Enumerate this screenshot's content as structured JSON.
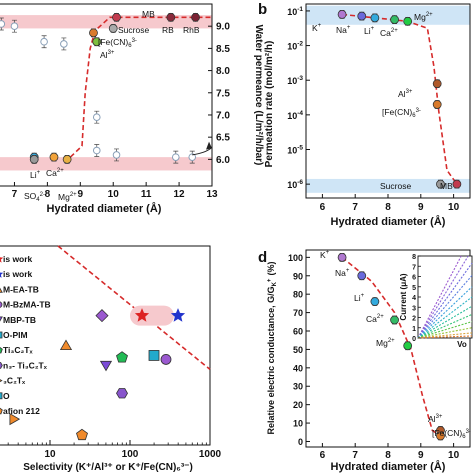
{
  "chart_data": [
    {
      "panel": "",
      "type": "scatter",
      "xlabel": "Hydrated diameter (Å)",
      "y2label": "Water permeance (L/m²/h/bar)",
      "xlim": [
        6.5,
        13
      ],
      "y2lim": [
        5.4,
        9.5
      ],
      "x_ticks": [
        "7",
        "8",
        "9",
        "10",
        "11",
        "12",
        "13"
      ],
      "y2_ticks": [
        "6.0",
        "6.5",
        "7.0",
        "7.5",
        "8.0",
        "8.5",
        "9.0"
      ],
      "bands": [
        {
          "y_from": 8.95,
          "y_to": 9.25,
          "color": "#f6c9cd"
        },
        {
          "y_from": 5.75,
          "y_to": 6.05,
          "color": "#f6c9cd"
        }
      ],
      "points": [
        {
          "label": "MB",
          "x": 10.1,
          "y": 9.2,
          "color": "#c23b4e"
        },
        {
          "label": "RB",
          "x": 11.75,
          "y": 9.2,
          "color": "#8a2a3c"
        },
        {
          "label": "RhB",
          "x": 12.5,
          "y": 9.2,
          "color": "#7b2233"
        },
        {
          "label": "Sucrose",
          "x": 10.0,
          "y": 8.95,
          "color": "#aaaaaa"
        },
        {
          "label": "[Fe(CN)6]3-",
          "x": 9.4,
          "y": 8.85,
          "color": "#d97a2b"
        },
        {
          "label": "Al3+",
          "x": 9.5,
          "y": 8.65,
          "color": "#7fbf3f"
        },
        {
          "label": "Li+",
          "x": 7.6,
          "y": 6.05,
          "color": "#33aadd"
        },
        {
          "label": "SO42-",
          "x": 7.6,
          "y": 6.0,
          "color": "#999999"
        },
        {
          "label": "Ca2+",
          "x": 8.2,
          "y": 6.05,
          "color": "#f2a33a"
        },
        {
          "label": "Mg2+",
          "x": 8.6,
          "y": 6.0,
          "color": "#e7b043"
        }
      ],
      "open_points": [
        {
          "x": 6.6,
          "y": 9.05
        },
        {
          "x": 7.0,
          "y": 9.0
        },
        {
          "x": 7.9,
          "y": 8.65
        },
        {
          "x": 8.5,
          "y": 8.6
        },
        {
          "x": 9.5,
          "y": 6.95
        },
        {
          "x": 9.5,
          "y": 6.2
        },
        {
          "x": 10.1,
          "y": 6.1
        },
        {
          "x": 11.9,
          "y": 6.05
        },
        {
          "x": 12.4,
          "y": 6.05
        }
      ],
      "trend": [
        [
          8.7,
          6.05
        ],
        [
          9.05,
          6.3
        ],
        [
          9.15,
          7.5
        ],
        [
          9.3,
          8.5
        ],
        [
          9.45,
          8.9
        ],
        [
          9.9,
          9.2
        ],
        [
          13,
          9.2
        ]
      ],
      "labels": {
        "MB": "MB",
        "RB": "RB",
        "RhB": "RhB",
        "Sucrose": "Sucrose",
        "Fe": "[Fe(CN)",
        "Fe_sub": "6",
        "Fe_sup": "3-",
        "Al": "Al",
        "Al_sup": "3+",
        "Li": "Li",
        "Li_sup": "+",
        "Ca": "Ca",
        "Ca_sup": "2+",
        "SO4": "SO",
        "SO4_sub": "4",
        "SO4_sup": "2-",
        "Mg": "Mg",
        "Mg_sup": "2+"
      }
    },
    {
      "panel": "b",
      "type": "scatter",
      "xlabel": "Hydrated diameter (Å)",
      "ylabel": "Permeation rate (mol/m²/h)",
      "xlim": [
        5.5,
        10.5
      ],
      "ylim_exp": [
        -6.4,
        -0.8
      ],
      "yscale": "log",
      "x_ticks": [
        "6",
        "7",
        "8",
        "9",
        "10"
      ],
      "y_ticks": [
        {
          "base": "10",
          "exp": "-1"
        },
        {
          "base": "10",
          "exp": "-2"
        },
        {
          "base": "10",
          "exp": "-3"
        },
        {
          "base": "10",
          "exp": "-4"
        },
        {
          "base": "10",
          "exp": "-5"
        },
        {
          "base": "10",
          "exp": "-6"
        }
      ],
      "bands": [
        {
          "y_from": -1.4,
          "y_to": -0.85,
          "color": "#cfe5f6"
        },
        {
          "y_from": -6.25,
          "y_to": -5.85,
          "color": "#cfe5f6"
        }
      ],
      "points": [
        {
          "label": "K+",
          "x": 6.6,
          "y_exp": -1.1,
          "color": "#b078d0"
        },
        {
          "label": "Na+",
          "x": 7.2,
          "y_exp": -1.15,
          "color": "#6a6adc"
        },
        {
          "label": "Li+",
          "x": 7.6,
          "y_exp": -1.2,
          "color": "#33aadd"
        },
        {
          "label": "Ca2+",
          "x": 8.2,
          "y_exp": -1.25,
          "color": "#33bb66"
        },
        {
          "label": "Mg2+",
          "x": 8.6,
          "y_exp": -1.3,
          "color": "#22cc44"
        },
        {
          "label": "Al3+",
          "x": 9.5,
          "y_exp": -3.1,
          "color": "#b05a2a"
        },
        {
          "label": "[Fe(CN)6]3-",
          "x": 9.5,
          "y_exp": -3.7,
          "color": "#d97a2b"
        },
        {
          "label": "Sucrose",
          "x": 9.6,
          "y_exp": -6.0,
          "color": "#999999"
        },
        {
          "label": "MB",
          "x": 10.1,
          "y_exp": -6.0,
          "color": "#c23b4e"
        }
      ],
      "trend": [
        [
          6.6,
          -1.1
        ],
        [
          8.6,
          -1.3
        ],
        [
          9.2,
          -1.5
        ],
        [
          9.4,
          -2.6
        ],
        [
          9.55,
          -3.9
        ],
        [
          9.8,
          -5.6
        ],
        [
          10.1,
          -6.0
        ]
      ],
      "labels": {
        "K": "K",
        "K_sup": "+",
        "Na": "Na",
        "Na_sup": "+",
        "Li": "Li",
        "Li_sup": "+",
        "Ca": "Ca",
        "Ca_sup": "2+",
        "Mg": "Mg",
        "Mg_sup": "2+",
        "Al": "Al",
        "Al_sup": "3+",
        "Fe": "[Fe(CN)",
        "Fe_sub": "6",
        "Fe_sup": "3-",
        "Sucrose": "Sucrose",
        "MB": "MB"
      }
    },
    {
      "panel": "",
      "type": "scatter",
      "xlabel": "Selectivity (K⁺/Al³⁺ or K⁺/Fe(CN)₆³⁻)",
      "xscale": "log",
      "xlim_exp": [
        0.35,
        3.0
      ],
      "x_ticks": [
        "10",
        "100",
        "1000"
      ],
      "legend": [
        {
          "text": "is work",
          "marker": "star",
          "color": "#dd2222"
        },
        {
          "text": "is work",
          "marker": "star",
          "color": "#2233cc"
        },
        {
          "text": "M-EA-TB",
          "marker": "triangle",
          "color": "#f08a2b"
        },
        {
          "text": "M-BzMA-TB",
          "marker": "circle",
          "color": "#9b59d0"
        },
        {
          "text": "MBP-TB",
          "marker": "triangle-down",
          "color": "#7b4bd8"
        },
        {
          "text": "O-PIM",
          "marker": "square",
          "color": "#22aacc"
        },
        {
          "text": "Ti₃C₂Tₓ",
          "marker": "pentagon",
          "color": "#22bb55"
        },
        {
          "text": "n₃- Ti₃C₂Tₓ",
          "marker": "hexagon",
          "color": "#8855cc"
        },
        {
          "text": "₃C₂Tₓ",
          "marker": "triangle-right",
          "color": "#f08a2b"
        },
        {
          "text": "O",
          "marker": "square",
          "color": "#22aacc"
        },
        {
          "text": "afion 212",
          "marker": "pentagon",
          "color": "#f08a2b"
        }
      ],
      "points": [
        {
          "x_exp": 2.15,
          "y": 0.35,
          "marker": "star",
          "color": "#dd2222"
        },
        {
          "x_exp": 2.6,
          "y": 0.35,
          "marker": "star",
          "color": "#2233cc"
        },
        {
          "x_exp": 1.65,
          "y": 0.35,
          "marker": "diamond",
          "color": "#9b59d0"
        },
        {
          "x_exp": 1.2,
          "y": 0.5,
          "marker": "triangle",
          "color": "#f08a2b"
        },
        {
          "x_exp": 1.7,
          "y": 0.6,
          "marker": "triangle-down",
          "color": "#7b4bd8"
        },
        {
          "x_exp": 1.9,
          "y": 0.56,
          "marker": "pentagon",
          "color": "#22bb55"
        },
        {
          "x_exp": 2.3,
          "y": 0.55,
          "marker": "square",
          "color": "#22aacc"
        },
        {
          "x_exp": 2.45,
          "y": 0.57,
          "marker": "circle",
          "color": "#9b59d0"
        },
        {
          "x_exp": 1.9,
          "y": 0.74,
          "marker": "hexagon",
          "color": "#8855cc"
        },
        {
          "x_exp": 0.55,
          "y": 0.87,
          "marker": "triangle-right",
          "color": "#f08a2b"
        },
        {
          "x_exp": 1.4,
          "y": 0.95,
          "marker": "pentagon",
          "color": "#f08a2b"
        }
      ],
      "trend": [
        [
          1.1,
          0.0
        ],
        [
          3.0,
          0.62
        ]
      ],
      "highlight": {
        "x_exp_from": 2.0,
        "x_exp_to": 2.55,
        "y": 0.35
      }
    },
    {
      "panel": "d",
      "type": "scatter",
      "xlabel": "Hydrated diameter (Å)",
      "ylabel": "Relative electric conductance, G/G",
      "ylabel_sub": "K",
      "ylabel_sup": "+",
      "ylabel_unit": "(%)",
      "xlim": [
        5.5,
        10.5
      ],
      "ylim": [
        -3,
        104
      ],
      "x_ticks": [
        "6",
        "7",
        "8",
        "9",
        "10"
      ],
      "y_ticks": [
        "0",
        "10",
        "20",
        "30",
        "40",
        "50",
        "60",
        "70",
        "80",
        "90",
        "100"
      ],
      "points": [
        {
          "label": "K+",
          "x": 6.6,
          "y": 100,
          "color": "#b078d0"
        },
        {
          "label": "Na+",
          "x": 7.2,
          "y": 90,
          "color": "#6a6adc"
        },
        {
          "label": "Li+",
          "x": 7.6,
          "y": 76,
          "color": "#33aadd"
        },
        {
          "label": "Ca2+",
          "x": 8.2,
          "y": 66,
          "color": "#33bb66"
        },
        {
          "label": "Mg2+",
          "x": 8.6,
          "y": 52,
          "color": "#22cc44"
        },
        {
          "label": "Al3+",
          "x": 9.6,
          "y": 6,
          "color": "#b05a2a"
        },
        {
          "label": "[Fe(CN)6]3-",
          "x": 9.6,
          "y": 3,
          "color": "#d97a2b"
        }
      ],
      "trend": [
        [
          6.6,
          100
        ],
        [
          7.5,
          87
        ],
        [
          8.2,
          70
        ],
        [
          8.7,
          50
        ],
        [
          9.05,
          25
        ],
        [
          9.35,
          6
        ],
        [
          9.6,
          3
        ]
      ],
      "labels": {
        "K": "K",
        "K_sup": "+",
        "Na": "Na",
        "Na_sup": "+",
        "Li": "Li",
        "Li_sup": "+",
        "Ca": "Ca",
        "Ca_sup": "2+",
        "Mg": "Mg",
        "Mg_sup": "2+",
        "Al": "Al",
        "Al_sup": "3+",
        "Fe": "[Fe(CN)",
        "Fe_sub": "6",
        "Fe_sup": "3-"
      },
      "inset": {
        "ylabel": "Current (μA)",
        "xlabel": "Vo",
        "y_ticks": [
          "0",
          "1",
          "2",
          "3",
          "4",
          "5",
          "6",
          "7",
          "8"
        ],
        "ylim": [
          0,
          8
        ],
        "xlim": [
          0,
          1
        ],
        "lines": [
          {
            "slope": 10.0,
            "color": "#9b59d0"
          },
          {
            "slope": 8.6,
            "color": "#8a63d8"
          },
          {
            "slope": 7.3,
            "color": "#6a6adc"
          },
          {
            "slope": 6.1,
            "color": "#5b7fe0"
          },
          {
            "slope": 5.0,
            "color": "#3aa0dd"
          },
          {
            "slope": 4.0,
            "color": "#2fb3c6"
          },
          {
            "slope": 3.1,
            "color": "#2cbf9e"
          },
          {
            "slope": 2.3,
            "color": "#33c477"
          },
          {
            "slope": 1.6,
            "color": "#5dc64a"
          },
          {
            "slope": 1.0,
            "color": "#9ac43a"
          },
          {
            "slope": 0.5,
            "color": "#d8a33a"
          },
          {
            "slope": 0.2,
            "color": "#e07a2b"
          }
        ]
      }
    }
  ]
}
